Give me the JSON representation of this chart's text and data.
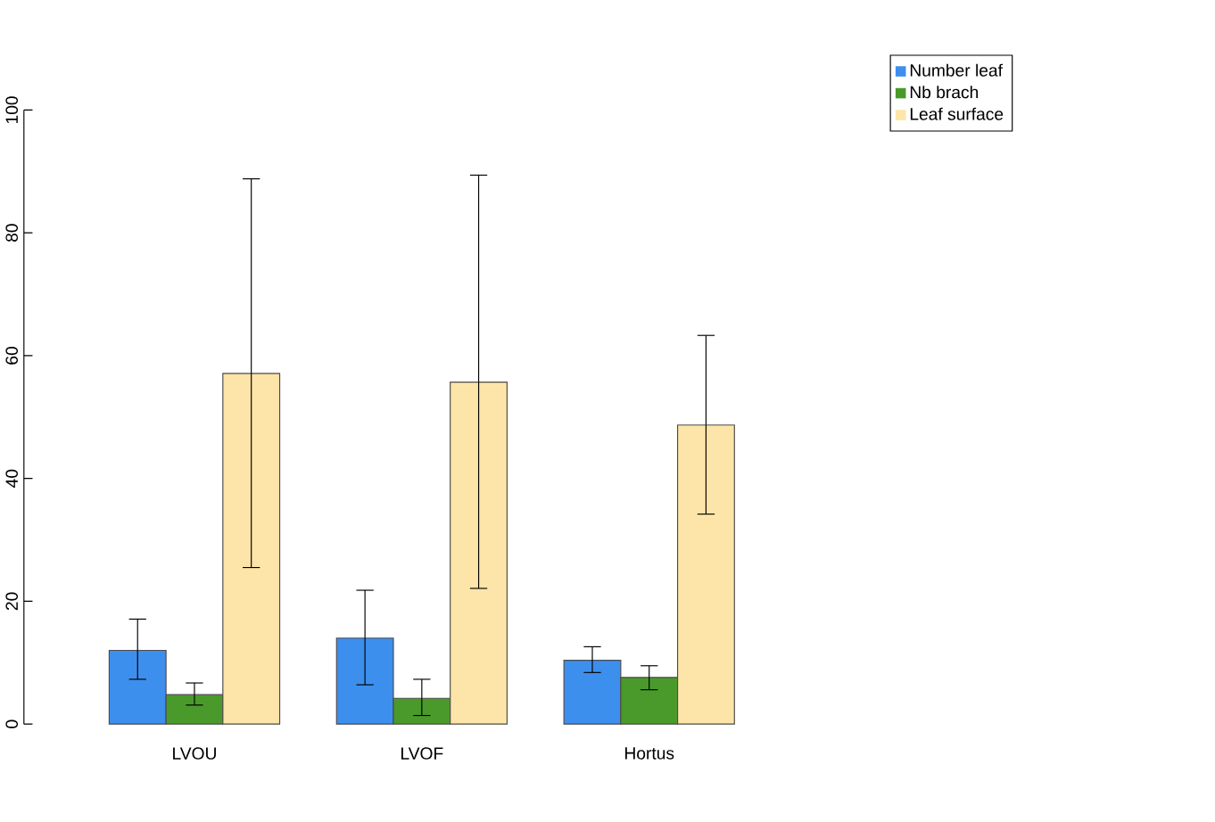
{
  "chart_data": {
    "type": "bar",
    "categories": [
      "LVOU",
      "LVOF",
      "Hortus"
    ],
    "series": [
      {
        "name": "Number leaf",
        "color": "#3d8fee",
        "values": [
          12.0,
          14.0,
          10.4
        ],
        "errors": [
          [
            7.3,
            17.1
          ],
          [
            6.4,
            21.8
          ],
          [
            8.4,
            12.6
          ]
        ]
      },
      {
        "name": "Nb brach",
        "color": "#4a9a2b",
        "values": [
          4.8,
          4.2,
          7.6
        ],
        "errors": [
          [
            3.1,
            6.7
          ],
          [
            1.4,
            7.3
          ],
          [
            5.6,
            9.5
          ]
        ]
      },
      {
        "name": "Leaf surface",
        "color": "#fde4a8",
        "values": [
          57.1,
          55.7,
          48.7
        ],
        "errors": [
          [
            25.5,
            88.8
          ],
          [
            22.1,
            89.4
          ],
          [
            34.2,
            63.3
          ]
        ]
      }
    ],
    "ylim": [
      0,
      100
    ],
    "yticks": [
      0,
      20,
      40,
      60,
      80,
      100
    ],
    "legend": "top right"
  }
}
